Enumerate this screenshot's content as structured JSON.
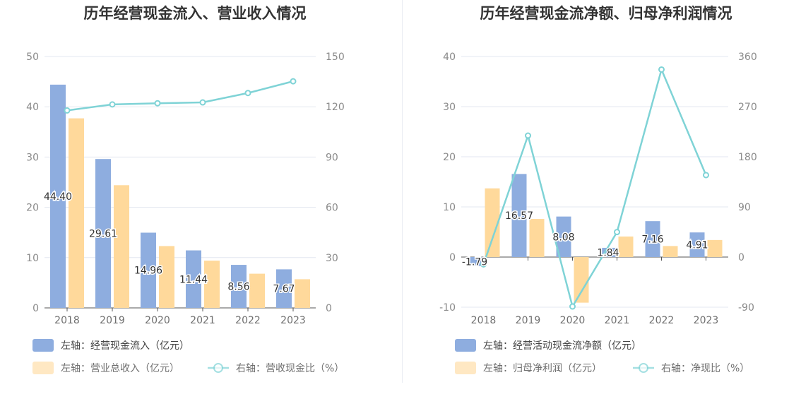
{
  "colors": {
    "bar_primary": "#8eaddf",
    "bar_secondary": "#ffd99b",
    "line": "#7fd3d6",
    "grid": "#e3e7f0",
    "axis": "#555555"
  },
  "chart_data": [
    {
      "type": "bar",
      "title": "历年经营现金流入、营业收入情况",
      "categories": [
        "2018",
        "2019",
        "2020",
        "2021",
        "2022",
        "2023"
      ],
      "left_axis": {
        "ylim": [
          0,
          50
        ],
        "ticks": [
          "0",
          "10",
          "20",
          "30",
          "40",
          "50"
        ]
      },
      "right_axis": {
        "ylim": [
          0,
          150
        ],
        "ticks": [
          "0",
          "30",
          "60",
          "90",
          "120",
          "150"
        ]
      },
      "grid": true,
      "legend_position": "bottom",
      "series": [
        {
          "name": "左轴：经营现金流入（亿元）",
          "type": "bar",
          "axis": "left",
          "values": [
            44.4,
            29.61,
            14.96,
            11.44,
            8.56,
            7.67
          ],
          "labels": [
            "44.40",
            "29.61",
            "14.96",
            "11.44",
            "8.56",
            "7.67"
          ]
        },
        {
          "name": "左轴：营业总收入（亿元）",
          "type": "bar",
          "axis": "left",
          "values": [
            37.7,
            24.4,
            12.3,
            9.4,
            6.8,
            5.7
          ]
        },
        {
          "name": "右轴：营收现金比（%）",
          "type": "line",
          "axis": "right",
          "values": [
            117.8,
            121.4,
            122.1,
            122.6,
            128.2,
            135.2
          ]
        }
      ]
    },
    {
      "type": "bar",
      "title": "历年经营现金流净额、归母净利润情况",
      "categories": [
        "2018",
        "2019",
        "2020",
        "2021",
        "2022",
        "2023"
      ],
      "left_axis": {
        "ylim": [
          -10,
          40
        ],
        "ticks": [
          "-10",
          "0",
          "10",
          "20",
          "30",
          "40"
        ]
      },
      "right_axis": {
        "ylim": [
          -90,
          360
        ],
        "ticks": [
          "-90",
          "0",
          "90",
          "180",
          "270",
          "360"
        ]
      },
      "grid": true,
      "legend_position": "bottom",
      "series": [
        {
          "name": "左轴：经营活动现金流净额（亿元）",
          "type": "bar",
          "axis": "left",
          "values": [
            -1.79,
            16.57,
            8.08,
            1.84,
            7.16,
            4.91
          ],
          "labels": [
            "-1.79",
            "16.57",
            "8.08",
            "1.84",
            "7.16",
            "4.91"
          ]
        },
        {
          "name": "左轴：归母净利润（亿元）",
          "type": "bar",
          "axis": "left",
          "values": [
            13.7,
            7.6,
            -9.1,
            4.1,
            2.2,
            3.4
          ]
        },
        {
          "name": "右轴：净现比（%）",
          "type": "line",
          "axis": "right",
          "values": [
            -13.1,
            218.0,
            -88.8,
            44.9,
            336.6,
            147.1
          ]
        }
      ]
    }
  ]
}
